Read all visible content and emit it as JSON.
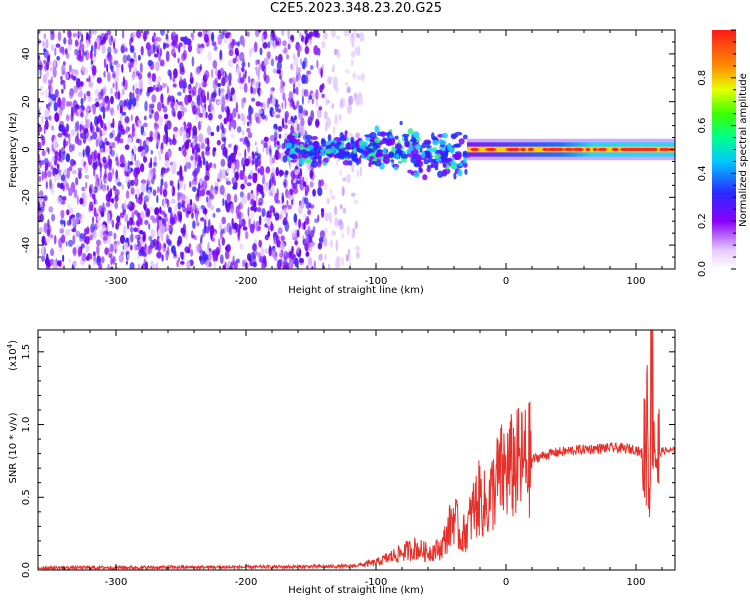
{
  "title": "C2E5.2023.348.23.20.G25",
  "chart_data": [
    {
      "type": "heatmap",
      "xlabel": "Height of straight line (km)",
      "ylabel": "Frequency (Hz)",
      "xlim": [
        -360,
        130
      ],
      "ylim": [
        -50,
        50
      ],
      "xticks": [
        -300,
        -200,
        -100,
        0,
        100
      ],
      "yticks": [
        -40,
        -20,
        0,
        20,
        40
      ],
      "colorbar": {
        "label": "Normalized spectral amplitude",
        "range": [
          0.0,
          1.0
        ],
        "ticks": [
          0.0,
          0.2,
          0.4,
          0.6,
          0.8
        ],
        "colormap": "rainbow-white-violet-to-red"
      },
      "regions": [
        {
          "description": "broadband noise",
          "x_range": [
            -360,
            -110
          ],
          "y_range": [
            -50,
            50
          ],
          "amplitude": [
            0.05,
            0.25
          ]
        },
        {
          "description": "central band widening",
          "x_range": [
            -170,
            -30
          ],
          "center_hz": 0,
          "halfwidth_hz": 12,
          "amplitude": [
            0.2,
            0.5
          ]
        },
        {
          "description": "narrow dominant band",
          "x_range": [
            -30,
            130
          ],
          "center_hz": 0,
          "halfwidth_hz": 3,
          "amplitude": [
            0.7,
            0.95
          ]
        }
      ]
    },
    {
      "type": "line",
      "xlabel": "Height of straight line (km)",
      "ylabel": "SNR (10 * v/v)",
      "scale_label": "(x10",
      "scale_exp": "4",
      "scale_close": ")",
      "xlim": [
        -360,
        130
      ],
      "ylim": [
        0,
        16500
      ],
      "xticks": [
        -300,
        -200,
        -100,
        0,
        100
      ],
      "yticks": [
        0.0,
        0.5,
        1.0,
        1.5
      ],
      "color": "#e8302a",
      "series": [
        {
          "x": [
            -360,
            -300,
            -200,
            -120,
            -100,
            -80,
            -70,
            -60,
            -50,
            -45,
            -40,
            -35,
            -30,
            -25,
            -20,
            -15,
            -10,
            -5,
            0,
            10,
            20,
            30,
            40,
            60,
            80,
            100,
            104,
            107,
            109,
            110,
            112,
            114,
            116,
            120,
            130
          ],
          "y": [
            150,
            170,
            200,
            250,
            500,
            1200,
            1500,
            1200,
            1500,
            2500,
            3800,
            2200,
            2800,
            4200,
            5000,
            4200,
            5500,
            6500,
            6800,
            7300,
            7600,
            7900,
            8100,
            8300,
            8400,
            8300,
            8000,
            8500,
            12000,
            5000,
            16500,
            10000,
            7600,
            8200,
            8200
          ]
        }
      ]
    }
  ]
}
